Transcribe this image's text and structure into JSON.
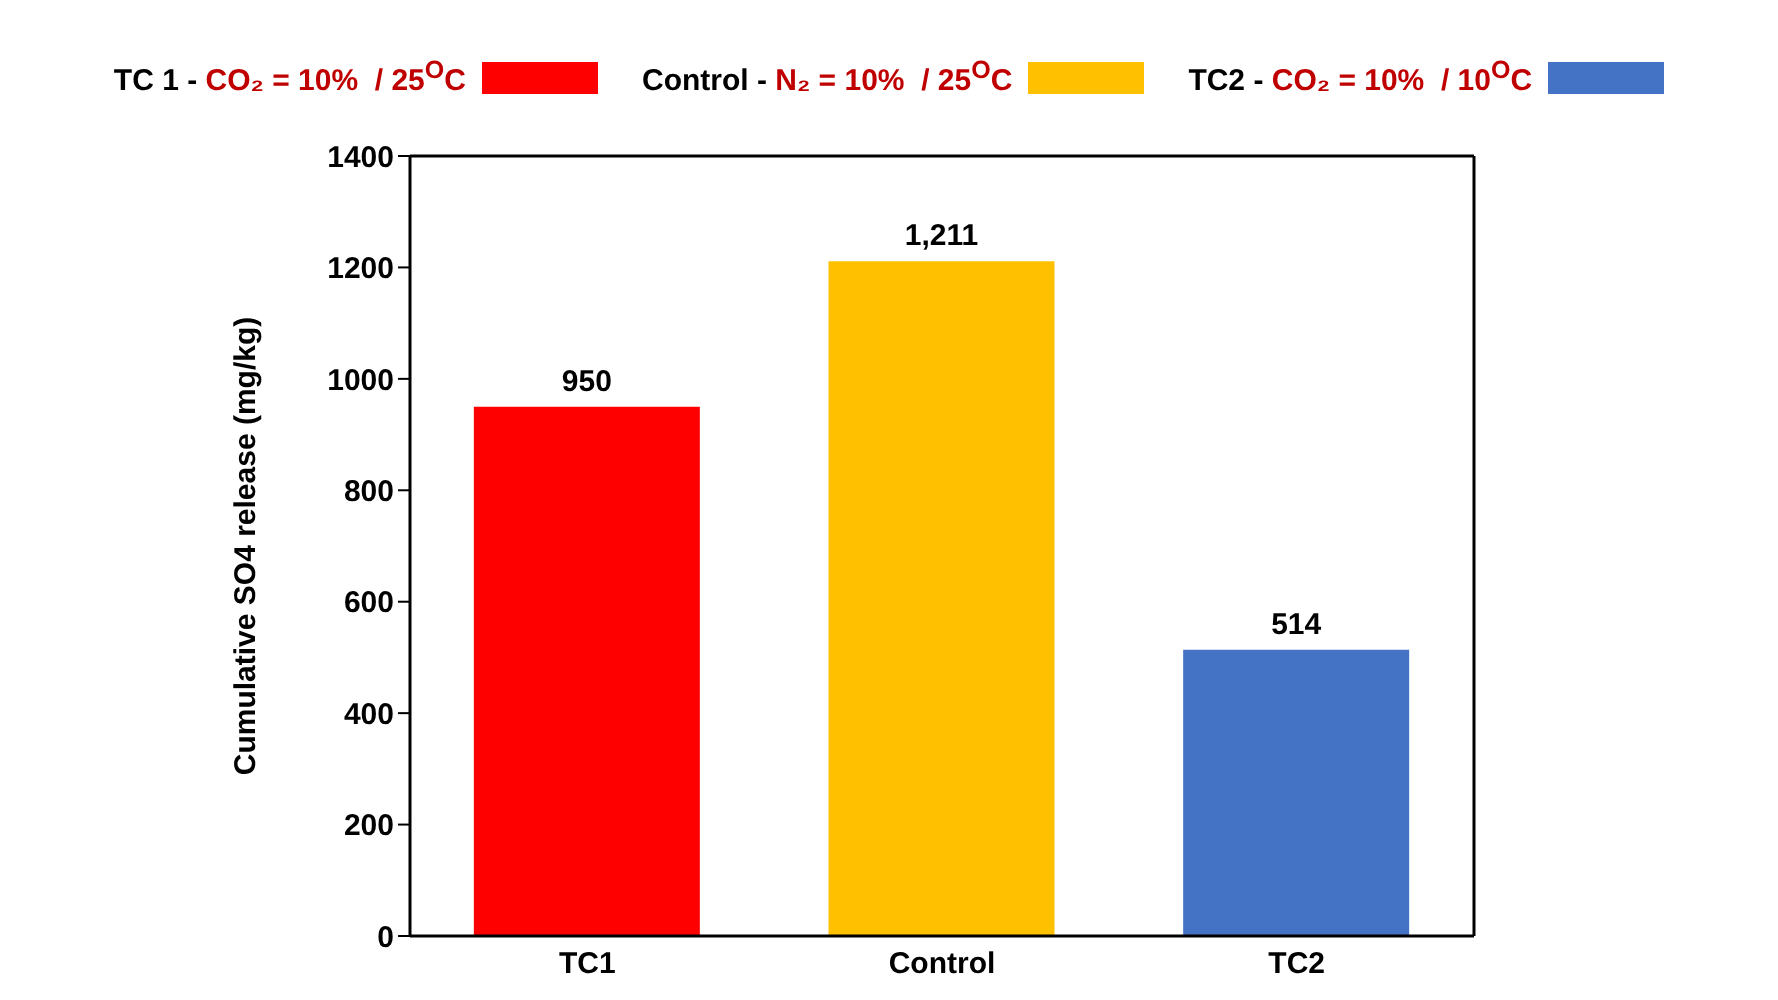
{
  "chart_data": {
    "type": "bar",
    "ylabel": "Cumulative SO4 release (mg/kg)",
    "categories": [
      "TC1",
      "Control",
      "TC2"
    ],
    "series": [
      {
        "name": "TC 1 - CO₂ = 10%  / 25$^{O}$C",
        "color": "#ff0000",
        "values": [
          950,
          null,
          null
        ],
        "value_labels": [
          "950",
          null,
          null
        ]
      },
      {
        "name": "Control - N₂ = 10%  / 25$^{O}$C",
        "color": "#ffc000",
        "values": [
          null,
          1211,
          null
        ],
        "value_labels": [
          null,
          "1,211",
          null
        ]
      },
      {
        "name": "TC2 - CO₂ = 10%  / 10$^{O}$C",
        "color": "#4472c4",
        "values": [
          null,
          null,
          514
        ],
        "value_labels": [
          null,
          null,
          "514"
        ]
      }
    ],
    "stacked": true,
    "ylim": [
      0,
      1400
    ],
    "yticks": [
      0,
      200,
      400,
      600,
      800,
      1000,
      1200,
      1400
    ],
    "grid": false,
    "legend": "top"
  }
}
